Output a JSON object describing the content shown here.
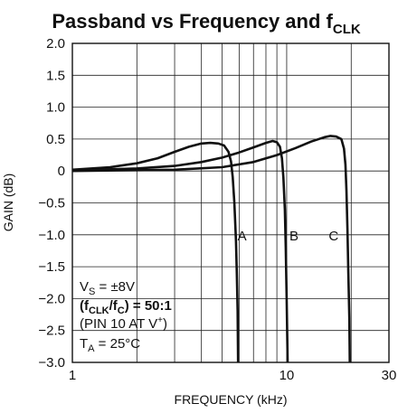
{
  "chart_data": {
    "type": "line",
    "title": "Passband vs Frequency and f",
    "title_subscript": "CLK",
    "xlabel": "FREQUENCY (kHz)",
    "ylabel": "GAIN (dB)",
    "xscale": "log",
    "xlim": [
      1,
      30
    ],
    "ylim": [
      -3.0,
      2.0
    ],
    "grid": true,
    "x_ticks": [
      {
        "value": 1,
        "label": "1"
      },
      {
        "value": 10,
        "label": "10"
      },
      {
        "value": 30,
        "label": "30"
      }
    ],
    "y_ticks": [
      {
        "value": 2.0,
        "label": "2.0"
      },
      {
        "value": 1.5,
        "label": "1.5"
      },
      {
        "value": 1.0,
        "label": "1.0"
      },
      {
        "value": 0.5,
        "label": "0.5"
      },
      {
        "value": 0,
        "label": "0"
      },
      {
        "value": -0.5,
        "label": "−0.5"
      },
      {
        "value": -1.0,
        "label": "−1.0"
      },
      {
        "value": -1.5,
        "label": "−1.5"
      },
      {
        "value": -2.0,
        "label": "−2.0"
      },
      {
        "value": -2.5,
        "label": "−2.5"
      },
      {
        "value": -3.0,
        "label": "−3.0"
      }
    ],
    "series": [
      {
        "name": "A",
        "label_at": {
          "x": 5.9,
          "y": -1.0
        },
        "points": [
          [
            1,
            0.02
          ],
          [
            1.5,
            0.06
          ],
          [
            2,
            0.12
          ],
          [
            2.5,
            0.2
          ],
          [
            3,
            0.3
          ],
          [
            3.5,
            0.38
          ],
          [
            4,
            0.43
          ],
          [
            4.4,
            0.44
          ],
          [
            4.8,
            0.43
          ],
          [
            5.1,
            0.4
          ],
          [
            5.35,
            0.3
          ],
          [
            5.5,
            0.15
          ],
          [
            5.6,
            -0.1
          ],
          [
            5.7,
            -0.5
          ],
          [
            5.8,
            -1.1
          ],
          [
            5.85,
            -1.6
          ],
          [
            5.9,
            -2.2
          ],
          [
            5.93,
            -3.0
          ]
        ]
      },
      {
        "name": "B",
        "label_at": {
          "x": 10.3,
          "y": -1.0
        },
        "points": [
          [
            1,
            0.01
          ],
          [
            2,
            0.04
          ],
          [
            3,
            0.08
          ],
          [
            4,
            0.14
          ],
          [
            5,
            0.21
          ],
          [
            6,
            0.29
          ],
          [
            7,
            0.37
          ],
          [
            8,
            0.44
          ],
          [
            8.6,
            0.47
          ],
          [
            9.0,
            0.45
          ],
          [
            9.3,
            0.38
          ],
          [
            9.5,
            0.2
          ],
          [
            9.65,
            -0.1
          ],
          [
            9.8,
            -0.6
          ],
          [
            9.9,
            -1.2
          ],
          [
            10.0,
            -2.0
          ],
          [
            10.1,
            -3.0
          ]
        ]
      },
      {
        "name": "C",
        "label_at": {
          "x": 15.7,
          "y": -1.0
        },
        "points": [
          [
            1,
            0.0
          ],
          [
            3,
            0.02
          ],
          [
            5,
            0.06
          ],
          [
            7,
            0.14
          ],
          [
            9,
            0.25
          ],
          [
            11,
            0.36
          ],
          [
            13,
            0.46
          ],
          [
            15,
            0.53
          ],
          [
            16,
            0.55
          ],
          [
            17,
            0.54
          ],
          [
            18,
            0.5
          ],
          [
            18.5,
            0.35
          ],
          [
            18.8,
            0.1
          ],
          [
            19.0,
            -0.3
          ],
          [
            19.2,
            -0.9
          ],
          [
            19.4,
            -1.6
          ],
          [
            19.6,
            -2.3
          ],
          [
            19.7,
            -3.0
          ]
        ]
      }
    ],
    "annotations": {
      "vs": {
        "main": "V",
        "sub": "S",
        "rest": " = ±8V"
      },
      "ratio": {
        "open": "(f",
        "sub1": "CLK",
        "mid": "/f",
        "sub2": "C",
        "rest": ") = 50:1"
      },
      "pin": {
        "main": "(PIN 10 AT V",
        "sup": "+",
        "rest": ")"
      },
      "ta": {
        "main": "T",
        "sub": "A",
        "rest": " = 25°C"
      }
    }
  }
}
